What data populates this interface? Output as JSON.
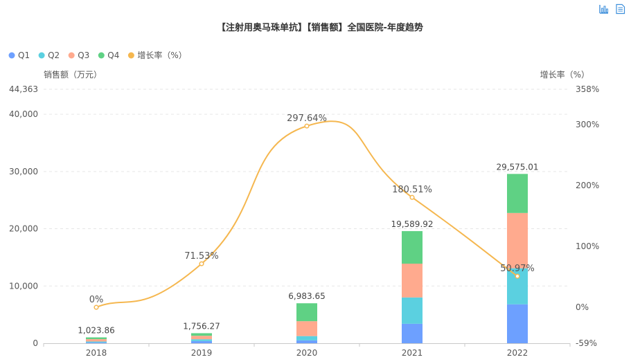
{
  "toolbar": {
    "chart_icon": "bar-chart-icon",
    "data_icon": "data-view-icon",
    "accent": "#3d8fdb"
  },
  "chart_data": {
    "type": "bar",
    "title": "【注射用奥马珠单抗】【销售额】全国医院-年度趋势",
    "categories": [
      "2018",
      "2019",
      "2020",
      "2021",
      "2022"
    ],
    "series": [
      {
        "name": "Q1",
        "type": "bar",
        "stack": true,
        "color": "#6da0ff",
        "values": [
          140,
          380,
          500,
          3400,
          6800
        ]
      },
      {
        "name": "Q2",
        "type": "bar",
        "stack": true,
        "color": "#5bd0e0",
        "values": [
          160,
          320,
          750,
          4600,
          6300
        ]
      },
      {
        "name": "Q3",
        "type": "bar",
        "stack": true,
        "color": "#ffaa8e",
        "values": [
          420,
          600,
          2600,
          5900,
          9650
        ]
      },
      {
        "name": "Q4",
        "type": "bar",
        "stack": true,
        "color": "#5fd184",
        "values": [
          303.86,
          456.27,
          3133.65,
          5689.92,
          6825.01
        ]
      },
      {
        "name": "增长率（%）",
        "type": "line",
        "axis": "right",
        "color": "#f5b74f",
        "values": [
          0,
          71.53,
          297.64,
          180.51,
          50.97
        ]
      }
    ],
    "totals": [
      "1,023.86",
      "1,756.27",
      "6,983.65",
      "19,589.92",
      "29,575.01"
    ],
    "rate_labels": [
      "0%",
      "71.53%",
      "297.64%",
      "180.51%",
      "50.97%"
    ],
    "ylabel": "销售额（万元）",
    "ylabel_right": "增长率（%）",
    "ylim": [
      0,
      44363
    ],
    "ylim_right": [
      -59,
      358
    ],
    "yticks": [
      0,
      10000,
      20000,
      30000,
      40000,
      44363
    ],
    "ytick_labels": [
      "0",
      "10,000",
      "20,000",
      "30,000",
      "40,000",
      "44,363"
    ],
    "yticks_right": [
      -59,
      0,
      100,
      200,
      300,
      358
    ],
    "ytick_right_labels": [
      "-59%",
      "0%",
      "100%",
      "200%",
      "300%",
      "358%"
    ],
    "grid": true,
    "legend": "top-left"
  }
}
